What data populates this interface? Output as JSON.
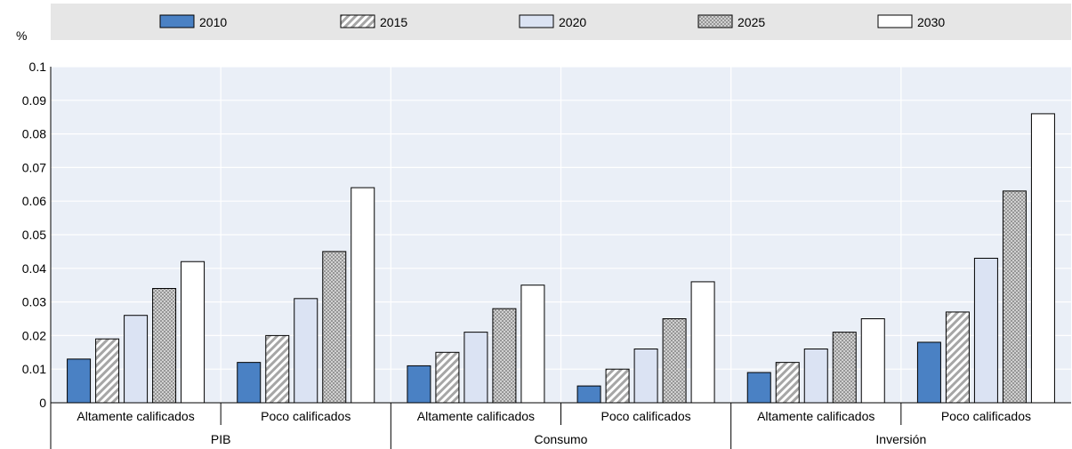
{
  "chart_data": {
    "type": "bar",
    "ylabel": "%",
    "ylim": [
      0,
      0.1
    ],
    "yticks": [
      "0",
      "0.01",
      "0.02",
      "0.03",
      "0.04",
      "0.05",
      "0.06",
      "0.07",
      "0.08",
      "0.09",
      "0.1"
    ],
    "groups": [
      {
        "name": "PIB",
        "categories": [
          "Altamente calificados",
          "Poco calificados"
        ]
      },
      {
        "name": "Consumo",
        "categories": [
          "Altamente calificados",
          "Poco calificados"
        ]
      },
      {
        "name": "Inversión",
        "categories": [
          "Altamente calificados",
          "Poco calificados"
        ]
      }
    ],
    "series": [
      {
        "name": "2010",
        "color": "#4a81c4",
        "pattern": "solid",
        "values": [
          0.013,
          0.012,
          0.011,
          0.005,
          0.009,
          0.018
        ]
      },
      {
        "name": "2015",
        "color": "#d9d9d9",
        "pattern": "hatch",
        "values": [
          0.019,
          0.02,
          0.015,
          0.01,
          0.012,
          0.027
        ]
      },
      {
        "name": "2020",
        "color": "#dbe3f3",
        "pattern": "solid",
        "values": [
          0.026,
          0.031,
          0.021,
          0.016,
          0.016,
          0.043
        ]
      },
      {
        "name": "2025",
        "color": "#cfcfcf",
        "pattern": "dots",
        "values": [
          0.034,
          0.045,
          0.028,
          0.025,
          0.021,
          0.063
        ]
      },
      {
        "name": "2030",
        "color": "#ffffff",
        "pattern": "solid",
        "values": [
          0.042,
          0.064,
          0.035,
          0.036,
          0.025,
          0.086
        ]
      }
    ],
    "legend_position": "top",
    "grid": true
  }
}
